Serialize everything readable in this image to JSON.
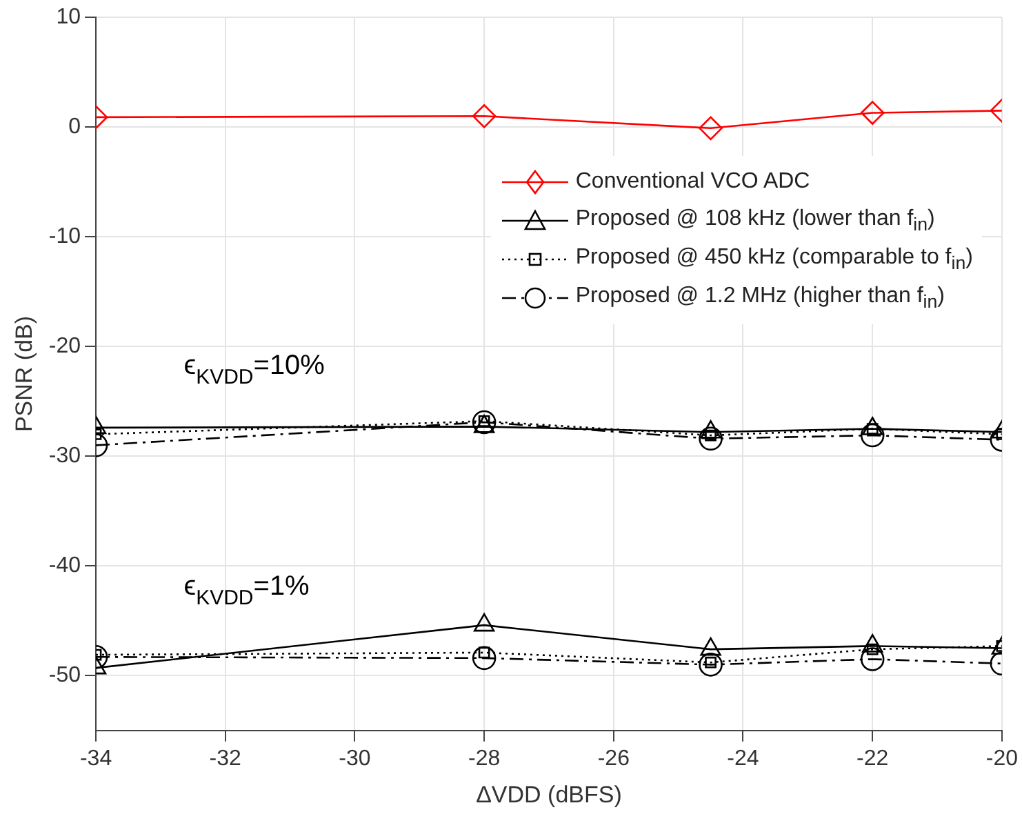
{
  "chart_data": {
    "type": "line",
    "xlabel": "ΔVDD (dBFS)",
    "ylabel": "PSNR (dB)",
    "x": [
      -34,
      -28,
      -24.5,
      -22,
      -20
    ],
    "xlim": [
      -34,
      -20
    ],
    "xticks": [
      -34,
      -32,
      -30,
      -28,
      -26,
      -24,
      -22,
      -20
    ],
    "ylim": [
      -55,
      10
    ],
    "yticks": [
      -50,
      -40,
      -30,
      -20,
      -10,
      0,
      10
    ],
    "grid": true,
    "legend": "top right",
    "series": [
      {
        "name": "Conventional VCO ADC",
        "color": "#ff0000",
        "marker": "diamond",
        "line_style": "solid",
        "values": [
          0.9,
          1.0,
          -0.1,
          1.3,
          1.5
        ]
      },
      {
        "name": "Proposed @ 108 kHz (lower than f$_{in}$)",
        "color": "#000000",
        "marker": "triangle",
        "line_style": "solid",
        "values": [
          -27.4,
          -27.3,
          -27.8,
          -27.5,
          -27.8
        ]
      },
      {
        "name": "Proposed @ 450 kHz (comparable to f$_{in}$)",
        "color": "#000000",
        "marker": "square",
        "line_style": "dotted",
        "values": [
          -28.0,
          -26.8,
          -28.1,
          -27.5,
          -28.0
        ]
      },
      {
        "name": "Proposed @ 1.2 MHz (higher than f$_{in}$)",
        "color": "#000000",
        "marker": "circle",
        "line_style": "dashdot",
        "values": [
          -29.0,
          -26.9,
          -28.4,
          -28.1,
          -28.5
        ]
      },
      {
        "color": "#000000",
        "marker": "triangle",
        "line_style": "solid",
        "values": [
          -49.3,
          -45.4,
          -47.6,
          -47.3,
          -47.5
        ]
      },
      {
        "color": "#000000",
        "marker": "square",
        "line_style": "dotted",
        "values": [
          -48.1,
          -47.9,
          -48.8,
          -47.6,
          -47.3
        ]
      },
      {
        "color": "#000000",
        "marker": "circle",
        "line_style": "dashdot",
        "values": [
          -48.3,
          -48.4,
          -49.0,
          -48.5,
          -48.9
        ]
      }
    ],
    "annotations": [
      "ϵ$_{KVDD}$=10%",
      "ϵ$_{KVDD}$=1%"
    ]
  }
}
